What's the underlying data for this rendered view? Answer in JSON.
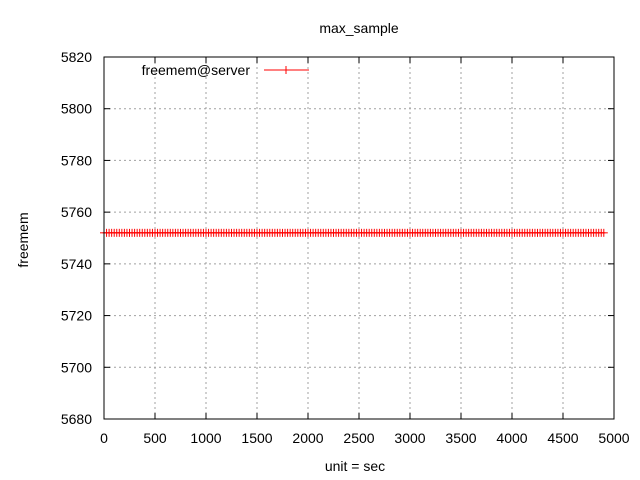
{
  "chart_data": {
    "type": "line",
    "title": "max_sample",
    "xlabel": "unit = sec",
    "ylabel": "freemem",
    "xlim": [
      0,
      5000
    ],
    "ylim": [
      5680,
      5820
    ],
    "xticks": [
      0,
      500,
      1000,
      1500,
      2000,
      2500,
      3000,
      3500,
      4000,
      4500,
      5000
    ],
    "yticks": [
      5680,
      5700,
      5720,
      5740,
      5760,
      5780,
      5800,
      5820
    ],
    "grid": true,
    "legend_position": "top-left",
    "series": [
      {
        "name": "freemem@server",
        "color": "#ff0000",
        "marker": "plus",
        "x_start": 0,
        "x_end": 4900,
        "x_step": 25,
        "y_constant": 5752
      }
    ]
  }
}
